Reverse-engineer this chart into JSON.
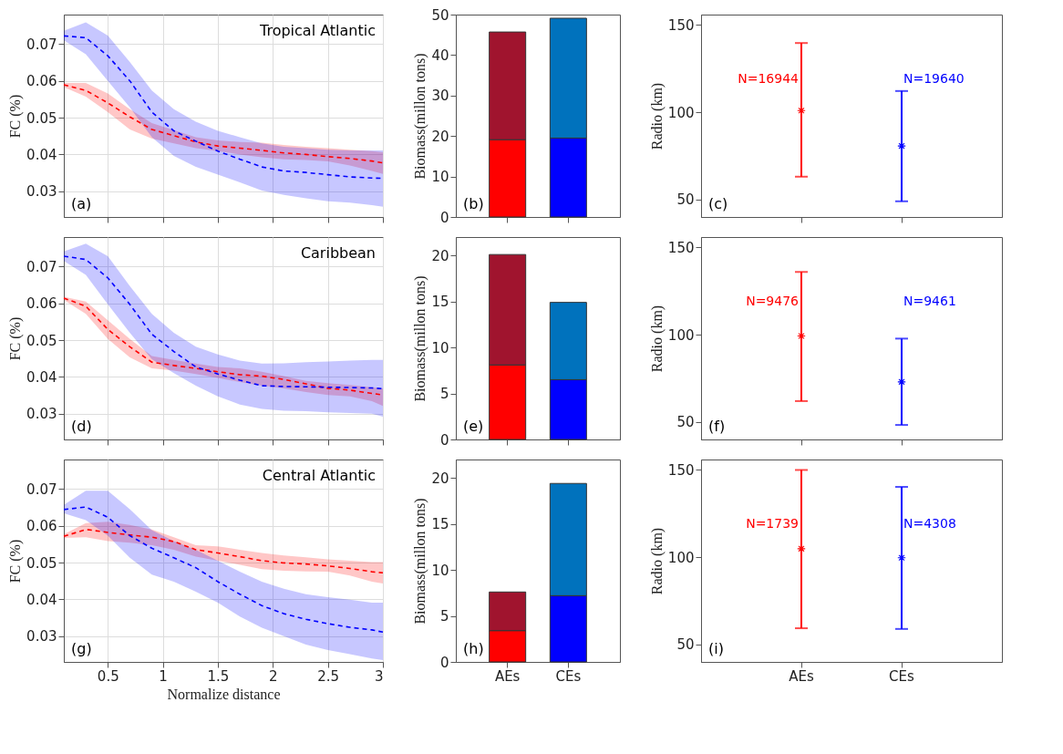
{
  "chart_data": [
    {
      "type": "line",
      "title": "Tropical Atlantic",
      "ylabel": "FC (%)",
      "annotations": [
        "(a)"
      ],
      "x": [
        0.1,
        0.3,
        0.5,
        0.7,
        0.9,
        1.1,
        1.3,
        1.5,
        1.7,
        1.9,
        2.1,
        2.3,
        2.5,
        2.7,
        2.9,
        3.0
      ],
      "xlim": [
        0.1,
        3
      ],
      "xticks": [
        0.5,
        1,
        1.5,
        2,
        2.5,
        3
      ],
      "ylim": [
        0.023,
        0.078
      ],
      "yticks": [
        0.03,
        0.04,
        0.05,
        0.06,
        0.07
      ],
      "tick_labels": "y",
      "grid": true,
      "line_style": "dashed",
      "series": [
        {
          "color": "#ff0000",
          "values": [
            0.0589,
            0.0574,
            0.054,
            0.0502,
            0.0468,
            0.0451,
            0.0434,
            0.0423,
            0.0417,
            0.0411,
            0.0404,
            0.04,
            0.0394,
            0.0389,
            0.0382,
            0.0377
          ],
          "upper": [
            0.0594,
            0.0594,
            0.0566,
            0.0523,
            0.0485,
            0.0466,
            0.0447,
            0.0438,
            0.0434,
            0.0432,
            0.0426,
            0.0421,
            0.0417,
            0.0413,
            0.0409,
            0.0406
          ],
          "lower": [
            0.0583,
            0.0557,
            0.0515,
            0.0468,
            0.0443,
            0.043,
            0.0417,
            0.0409,
            0.04,
            0.0392,
            0.0387,
            0.0385,
            0.0381,
            0.037,
            0.0355,
            0.0347
          ]
        },
        {
          "color": "#0000ff",
          "values": [
            0.0722,
            0.0717,
            0.0668,
            0.06,
            0.0515,
            0.0464,
            0.0436,
            0.0409,
            0.0387,
            0.0366,
            0.0355,
            0.0351,
            0.0345,
            0.0339,
            0.0336,
            0.0335
          ],
          "upper": [
            0.0736,
            0.0759,
            0.0723,
            0.0651,
            0.0574,
            0.0523,
            0.0489,
            0.0464,
            0.0447,
            0.043,
            0.0421,
            0.0417,
            0.0413,
            0.0411,
            0.0411,
            0.0411
          ],
          "lower": [
            0.071,
            0.0672,
            0.06,
            0.0528,
            0.0447,
            0.0396,
            0.0366,
            0.0345,
            0.0324,
            0.0302,
            0.029,
            0.0281,
            0.0273,
            0.0269,
            0.0262,
            0.0258
          ]
        }
      ]
    },
    {
      "type": "bar",
      "stacked": true,
      "ylabel": "Biomass(millon tons)",
      "annotations": [
        "(b)"
      ],
      "categories": [
        null,
        null
      ],
      "ylim": [
        0,
        50
      ],
      "yticks": [
        0,
        10,
        20,
        30,
        40,
        50
      ],
      "tick_labels": "y",
      "series": [
        {
          "colors": [
            "#ff0000",
            "#0000ff"
          ],
          "values": [
            19.1,
            19.5
          ]
        },
        {
          "colors": [
            "#a0142e",
            "#0072bd"
          ],
          "values": [
            26.6,
            29.6
          ]
        }
      ]
    },
    {
      "type": "scatter",
      "marker": "cross",
      "ylabel": "Radio (km)",
      "categories": [
        null,
        null
      ],
      "ylim": [
        40,
        156
      ],
      "yticks": [
        50,
        100,
        150
      ],
      "tick_labels": "y",
      "colors": [
        "#ff0000",
        "#0000ff"
      ],
      "values": [
        101,
        80.7
      ],
      "errors": [
        [
          63.1,
          139.7
        ],
        [
          49.0,
          112.2
        ]
      ],
      "annotations": [
        "(c)",
        "N=16944",
        "N=19640"
      ]
    },
    {
      "type": "line",
      "title": "Caribbean",
      "ylabel": "FC (%)",
      "annotations": [
        "(d)"
      ],
      "x": [
        0.1,
        0.3,
        0.5,
        0.7,
        0.9,
        1.1,
        1.3,
        1.5,
        1.7,
        1.9,
        2.1,
        2.3,
        2.5,
        2.7,
        2.9,
        3.0
      ],
      "xlim": [
        0.1,
        3
      ],
      "xticks": [
        0.5,
        1,
        1.5,
        2,
        2.5,
        3
      ],
      "ylim": [
        0.023,
        0.078
      ],
      "yticks": [
        0.03,
        0.04,
        0.05,
        0.06,
        0.07
      ],
      "tick_labels": "y",
      "grid": true,
      "line_style": "dashed",
      "series": [
        {
          "color": "#ff0000",
          "values": [
            0.0614,
            0.0592,
            0.0529,
            0.0482,
            0.044,
            0.0431,
            0.0423,
            0.0414,
            0.0406,
            0.0402,
            0.0393,
            0.0381,
            0.0369,
            0.0364,
            0.0355,
            0.0351
          ],
          "upper": [
            0.0618,
            0.0605,
            0.0554,
            0.0503,
            0.0457,
            0.0446,
            0.0436,
            0.0427,
            0.0423,
            0.0414,
            0.0402,
            0.0389,
            0.0383,
            0.0378,
            0.0372,
            0.0369
          ],
          "lower": [
            0.0609,
            0.0571,
            0.0503,
            0.0453,
            0.0423,
            0.0417,
            0.0408,
            0.0397,
            0.0386,
            0.0376,
            0.0369,
            0.0359,
            0.0351,
            0.0347,
            0.0334,
            0.0321
          ]
        },
        {
          "color": "#0000ff",
          "values": [
            0.0728,
            0.0719,
            0.0669,
            0.0597,
            0.0516,
            0.0469,
            0.0427,
            0.0408,
            0.0391,
            0.0376,
            0.0374,
            0.0373,
            0.0372,
            0.0371,
            0.037,
            0.0368
          ],
          "upper": [
            0.0741,
            0.0762,
            0.0728,
            0.0647,
            0.0571,
            0.052,
            0.0482,
            0.0461,
            0.0444,
            0.0436,
            0.0437,
            0.044,
            0.0442,
            0.0444,
            0.0446,
            0.0446
          ],
          "lower": [
            0.0715,
            0.0677,
            0.0597,
            0.052,
            0.0448,
            0.041,
            0.0376,
            0.0347,
            0.0325,
            0.0313,
            0.0308,
            0.0307,
            0.0304,
            0.0302,
            0.03,
            0.0292
          ]
        }
      ]
    },
    {
      "type": "bar",
      "stacked": true,
      "ylabel": "Biomass(millon tons)",
      "annotations": [
        "(e)"
      ],
      "categories": [
        null,
        null
      ],
      "ylim": [
        0,
        22
      ],
      "yticks": [
        0,
        5,
        10,
        15,
        20
      ],
      "tick_labels": "y",
      "series": [
        {
          "colors": [
            "#ff0000",
            "#0000ff"
          ],
          "values": [
            8.1,
            6.5
          ]
        },
        {
          "colors": [
            "#a0142e",
            "#0072bd"
          ],
          "values": [
            12.0,
            8.4
          ]
        }
      ]
    },
    {
      "type": "scatter",
      "marker": "cross",
      "ylabel": "Radio (km)",
      "categories": [
        null,
        null
      ],
      "ylim": [
        40,
        156
      ],
      "yticks": [
        50,
        100,
        150
      ],
      "tick_labels": "y",
      "colors": [
        "#ff0000",
        "#0000ff"
      ],
      "values": [
        99.3,
        73.0
      ],
      "errors": [
        [
          62.0,
          136.0
        ],
        [
          48.3,
          97.8
        ]
      ],
      "annotations": [
        "(f)",
        "N=9476",
        "N=9461"
      ]
    },
    {
      "type": "line",
      "title": "Central Atlantic",
      "xlabel": "Normalize distance",
      "ylabel": "FC (%)",
      "annotations": [
        "(g)"
      ],
      "x": [
        0.1,
        0.3,
        0.5,
        0.7,
        0.9,
        1.1,
        1.3,
        1.5,
        1.7,
        1.9,
        2.1,
        2.3,
        2.5,
        2.7,
        2.9,
        3.0
      ],
      "xlim": [
        0.1,
        3
      ],
      "xticks": [
        0.5,
        1,
        1.5,
        2,
        2.5,
        3
      ],
      "ylim": [
        0.023,
        0.078
      ],
      "yticks": [
        0.03,
        0.04,
        0.05,
        0.06,
        0.07
      ],
      "grid": true,
      "line_style": "dashed",
      "series": [
        {
          "color": "#ff0000",
          "values": [
            0.0571,
            0.059,
            0.0582,
            0.0575,
            0.0569,
            0.0557,
            0.0535,
            0.0526,
            0.0516,
            0.0505,
            0.0499,
            0.0496,
            0.0491,
            0.0484,
            0.0475,
            0.0472
          ],
          "upper": [
            0.0577,
            0.0607,
            0.0611,
            0.0602,
            0.059,
            0.0569,
            0.0547,
            0.0544,
            0.0535,
            0.0526,
            0.0519,
            0.0514,
            0.0509,
            0.0505,
            0.0501,
            0.0501
          ],
          "lower": [
            0.0567,
            0.0569,
            0.0558,
            0.0554,
            0.0547,
            0.0535,
            0.0516,
            0.0505,
            0.0494,
            0.0482,
            0.0478,
            0.0476,
            0.0475,
            0.0465,
            0.0448,
            0.0443
          ]
        },
        {
          "color": "#0000ff",
          "values": [
            0.0644,
            0.0651,
            0.0623,
            0.0573,
            0.0539,
            0.0513,
            0.0486,
            0.0448,
            0.0414,
            0.0383,
            0.0361,
            0.0346,
            0.0334,
            0.0324,
            0.0317,
            0.0311
          ],
          "upper": [
            0.0657,
            0.0695,
            0.0695,
            0.0645,
            0.0588,
            0.0558,
            0.0535,
            0.0505,
            0.0475,
            0.0448,
            0.0429,
            0.0414,
            0.0406,
            0.0399,
            0.0391,
            0.0391
          ],
          "lower": [
            0.0634,
            0.0615,
            0.0573,
            0.0513,
            0.0467,
            0.0448,
            0.0421,
            0.0391,
            0.0353,
            0.0323,
            0.03,
            0.0277,
            0.0262,
            0.0251,
            0.0239,
            0.0235
          ]
        }
      ]
    },
    {
      "type": "bar",
      "stacked": true,
      "ylabel": "Biomass(millon tons)",
      "annotations": [
        "(h)"
      ],
      "categories": [
        "AEs",
        "CEs"
      ],
      "ylim": [
        0,
        22
      ],
      "yticks": [
        0,
        5,
        10,
        15,
        20
      ],
      "series": [
        {
          "colors": [
            "#ff0000",
            "#0000ff"
          ],
          "values": [
            3.4,
            7.2
          ]
        },
        {
          "colors": [
            "#a0142e",
            "#0072bd"
          ],
          "values": [
            4.2,
            12.2
          ]
        }
      ]
    },
    {
      "type": "scatter",
      "marker": "cross",
      "ylabel": "Radio (km)",
      "categories": [
        "AEs",
        "CEs"
      ],
      "ylim": [
        40,
        156
      ],
      "yticks": [
        50,
        100,
        150
      ],
      "colors": [
        "#ff0000",
        "#0000ff"
      ],
      "values": [
        104.9,
        99.7
      ],
      "errors": [
        [
          59.3,
          150
        ],
        [
          58.9,
          140.3
        ]
      ],
      "annotations": [
        "(i)",
        "N=1739",
        "N=4308"
      ]
    }
  ]
}
